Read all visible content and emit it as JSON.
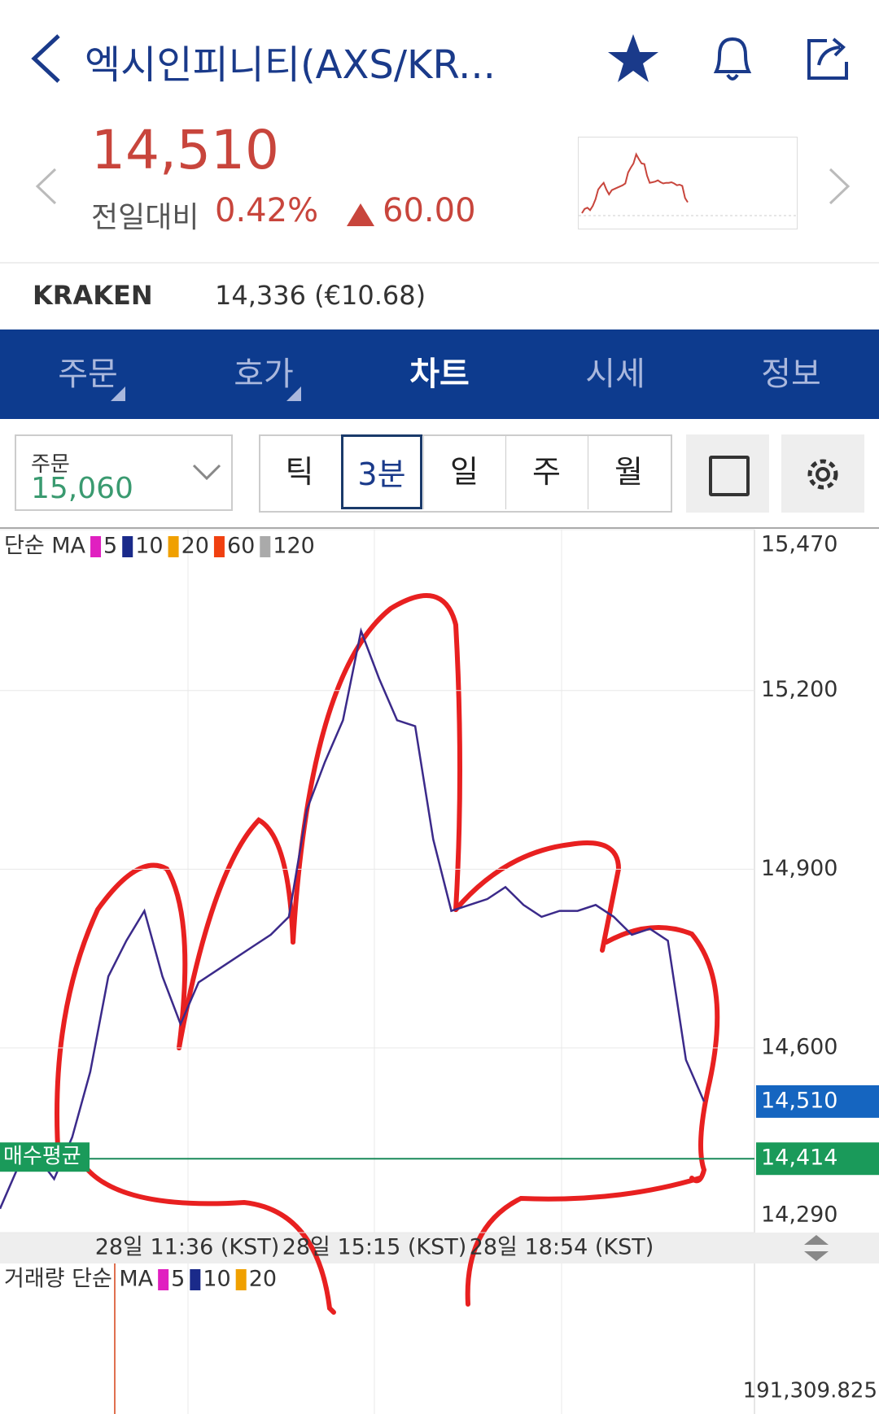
{
  "header": {
    "title": "엑시인피니티(AXS/KR..."
  },
  "quote": {
    "price": "14,510",
    "change_label": "전일대비",
    "change_pct": "0.42%",
    "change_abs": "60.00"
  },
  "exchange": {
    "name": "KRAKEN",
    "price": "14,336 (€10.68)"
  },
  "tabs": [
    "주문",
    "호가",
    "차트",
    "시세",
    "정보"
  ],
  "active_tab": 2,
  "order_box": {
    "label": "주문",
    "price": "15,060"
  },
  "periods": [
    "틱",
    "3분",
    "일",
    "주",
    "월"
  ],
  "active_period": 1,
  "chart_data": {
    "type": "line",
    "legend_label": "단순 MA",
    "ma_periods": [
      5,
      10,
      20,
      60,
      120
    ],
    "ma_colors": [
      "#e020c0",
      "#1a2a8a",
      "#f0a000",
      "#f04010",
      "#aaaaaa"
    ],
    "ylim": [
      14290,
      15470
    ],
    "yticks": [
      {
        "value": 15470,
        "label": "15,470"
      },
      {
        "value": 15200,
        "label": "15,200"
      },
      {
        "value": 14900,
        "label": "14,900"
      },
      {
        "value": 14600,
        "label": "14,600"
      },
      {
        "value": 14290,
        "label": "14,290"
      }
    ],
    "grid": true,
    "series": [
      {
        "color": "#3b2a8a",
        "values": [
          14330,
          14400,
          14420,
          14380,
          14450,
          14560,
          14720,
          14780,
          14830,
          14720,
          14640,
          14710,
          14730,
          14750,
          14770,
          14790,
          14820,
          15000,
          15080,
          15150,
          15300,
          15220,
          15150,
          15140,
          14950,
          14830,
          14840,
          14850,
          14870,
          14840,
          14820,
          14830,
          14830,
          14840,
          14820,
          14790,
          14800,
          14780,
          14580,
          14510
        ]
      }
    ],
    "current_price": {
      "value": 14510,
      "label": "14,510"
    },
    "avg_price": {
      "value": 14414,
      "label": "14,414",
      "name": "매수평균"
    },
    "x_labels": [
      "28일 11:36 (KST)",
      "28일 15:15 (KST)",
      "28일 18:54 (KST)"
    ]
  },
  "volume": {
    "legend_label": "거래량 단순 MA",
    "ma_periods": [
      5,
      10,
      20
    ],
    "max_label": "191,309.825"
  }
}
